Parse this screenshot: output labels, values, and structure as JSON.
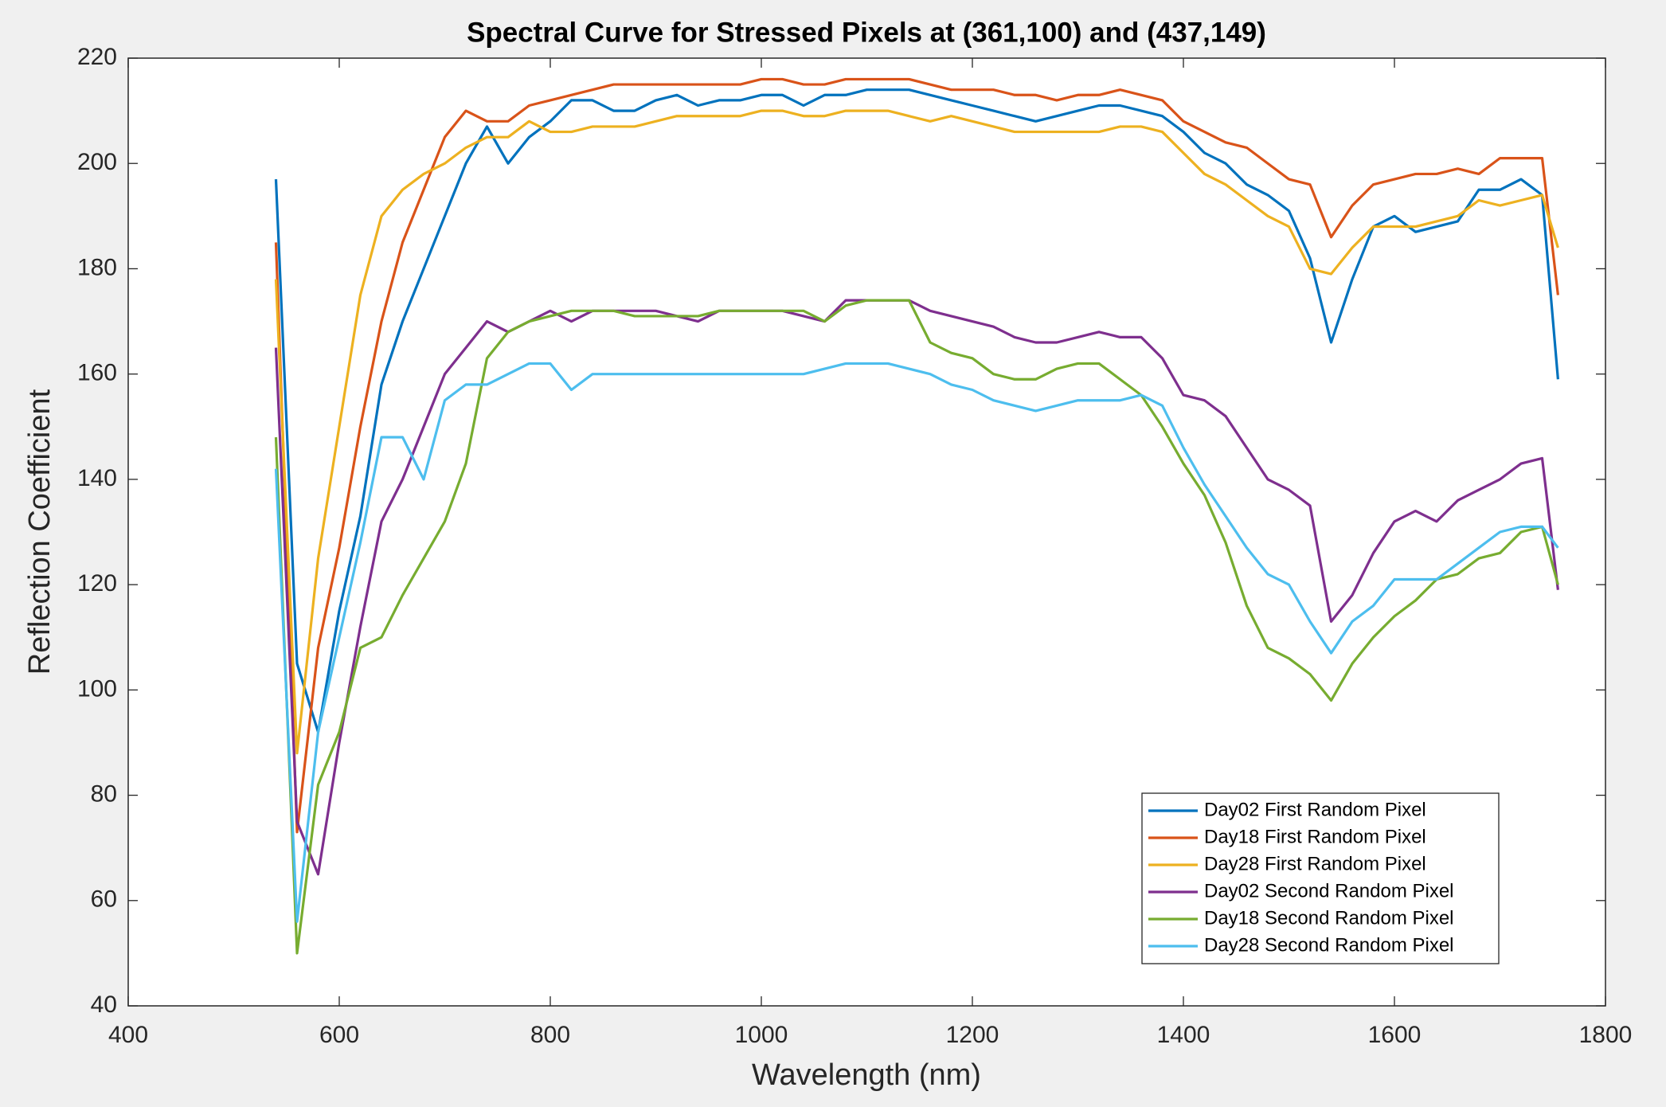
{
  "chart_data": {
    "type": "line",
    "title": "Spectral Curve for Stressed Pixels at (361,100) and (437,149)",
    "x_label": "Wavelength (nm)",
    "y_label": "Reflection Coefficient",
    "xlim": [
      400,
      1800
    ],
    "xticks": [
      400,
      600,
      800,
      1000,
      1200,
      1400,
      1600,
      1800
    ],
    "ylim": [
      40,
      220
    ],
    "yticks": [
      40,
      60,
      80,
      100,
      120,
      140,
      160,
      180,
      200,
      220
    ],
    "grid": false,
    "legend_location": "southeast",
    "x": [
      540,
      560,
      580,
      600,
      620,
      640,
      660,
      680,
      700,
      720,
      740,
      760,
      780,
      800,
      820,
      840,
      860,
      880,
      900,
      920,
      940,
      960,
      980,
      1000,
      1020,
      1040,
      1060,
      1080,
      1100,
      1120,
      1140,
      1160,
      1180,
      1200,
      1220,
      1240,
      1260,
      1280,
      1300,
      1320,
      1340,
      1360,
      1380,
      1400,
      1420,
      1440,
      1460,
      1480,
      1500,
      1520,
      1540,
      1560,
      1580,
      1600,
      1620,
      1640,
      1660,
      1680,
      1700,
      1720,
      1740,
      1755
    ],
    "series": [
      {
        "name": "Day02 First Random Pixel",
        "color": "#0072BD",
        "values": [
          197,
          105,
          92,
          115,
          133,
          158,
          170,
          180,
          190,
          200,
          207,
          200,
          205,
          208,
          212,
          212,
          210,
          210,
          212,
          213,
          211,
          212,
          212,
          213,
          213,
          211,
          213,
          213,
          214,
          214,
          214,
          213,
          212,
          211,
          210,
          209,
          208,
          209,
          210,
          211,
          211,
          210,
          209,
          206,
          202,
          200,
          196,
          194,
          191,
          182,
          166,
          178,
          188,
          190,
          187,
          188,
          189,
          195,
          195,
          197,
          194,
          159
        ]
      },
      {
        "name": "Day18 First Random Pixel",
        "color": "#D95319",
        "values": [
          185,
          73,
          108,
          127,
          150,
          170,
          185,
          195,
          205,
          210,
          208,
          208,
          211,
          212,
          213,
          214,
          215,
          215,
          215,
          215,
          215,
          215,
          215,
          216,
          216,
          215,
          215,
          216,
          216,
          216,
          216,
          215,
          214,
          214,
          214,
          213,
          213,
          212,
          213,
          213,
          214,
          213,
          212,
          208,
          206,
          204,
          203,
          200,
          197,
          196,
          186,
          192,
          196,
          197,
          198,
          198,
          199,
          198,
          201,
          201,
          201,
          175
        ]
      },
      {
        "name": "Day28 First Random Pixel",
        "color": "#EDB120",
        "values": [
          178,
          88,
          125,
          150,
          175,
          190,
          195,
          198,
          200,
          203,
          205,
          205,
          208,
          206,
          206,
          207,
          207,
          207,
          208,
          209,
          209,
          209,
          209,
          210,
          210,
          209,
          209,
          210,
          210,
          210,
          209,
          208,
          209,
          208,
          207,
          206,
          206,
          206,
          206,
          206,
          207,
          207,
          206,
          202,
          198,
          196,
          193,
          190,
          188,
          180,
          179,
          184,
          188,
          188,
          188,
          189,
          190,
          193,
          192,
          193,
          194,
          184
        ]
      },
      {
        "name": "Day02 Second Random Pixel",
        "color": "#7E2F8E",
        "values": [
          165,
          75,
          65,
          90,
          112,
          132,
          140,
          150,
          160,
          165,
          170,
          168,
          170,
          172,
          170,
          172,
          172,
          172,
          172,
          171,
          170,
          172,
          172,
          172,
          172,
          171,
          170,
          174,
          174,
          174,
          174,
          172,
          171,
          170,
          169,
          167,
          166,
          166,
          167,
          168,
          167,
          167,
          163,
          156,
          155,
          152,
          146,
          140,
          138,
          135,
          113,
          118,
          126,
          132,
          134,
          132,
          136,
          138,
          140,
          143,
          144,
          119
        ]
      },
      {
        "name": "Day18 Second Random Pixel",
        "color": "#77AC30",
        "values": [
          148,
          50,
          82,
          92,
          108,
          110,
          118,
          125,
          132,
          143,
          163,
          168,
          170,
          171,
          172,
          172,
          172,
          171,
          171,
          171,
          171,
          172,
          172,
          172,
          172,
          172,
          170,
          173,
          174,
          174,
          174,
          166,
          164,
          163,
          160,
          159,
          159,
          161,
          162,
          162,
          159,
          156,
          150,
          143,
          137,
          128,
          116,
          108,
          106,
          103,
          98,
          105,
          110,
          114,
          117,
          121,
          122,
          125,
          126,
          130,
          131,
          120
        ]
      },
      {
        "name": "Day28 Second Random Pixel",
        "color": "#4DBEEE",
        "values": [
          142,
          56,
          92,
          110,
          128,
          148,
          148,
          140,
          155,
          158,
          158,
          160,
          162,
          162,
          157,
          160,
          160,
          160,
          160,
          160,
          160,
          160,
          160,
          160,
          160,
          160,
          161,
          162,
          162,
          162,
          161,
          160,
          158,
          157,
          155,
          154,
          153,
          154,
          155,
          155,
          155,
          156,
          154,
          146,
          139,
          133,
          127,
          122,
          120,
          113,
          107,
          113,
          116,
          121,
          121,
          121,
          124,
          127,
          130,
          131,
          131,
          127
        ]
      }
    ]
  }
}
